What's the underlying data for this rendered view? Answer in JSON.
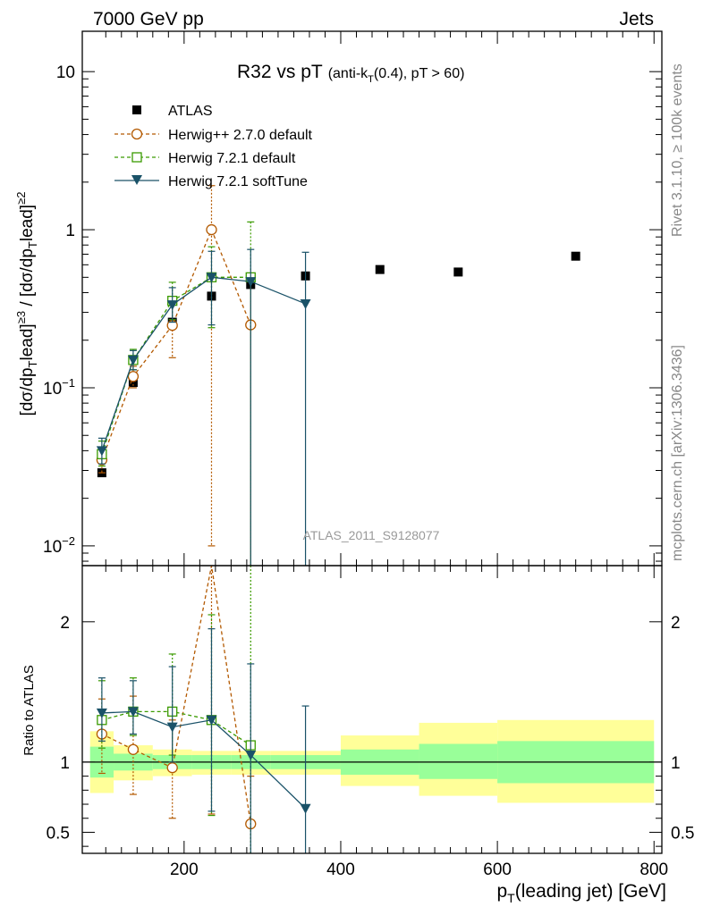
{
  "header": {
    "left": "7000 GeV pp",
    "right": "Jets"
  },
  "side_labels": {
    "rivet": "Rivet 3.1.10, ≥ 100k events",
    "mcplots": "mcplots.cern.ch [arXiv:1306.3436]"
  },
  "analysis_id": "ATLAS_2011_S9128077",
  "colors": {
    "atlas": "#000000",
    "herwigpp": "#b35900",
    "herwig721": "#3a9a00",
    "softtune": "#1a5268",
    "band_outer": "#ffff99",
    "band_inner": "#99ff99"
  },
  "chart_data": [
    {
      "type": "scatter",
      "panel": "main",
      "title": "R32 vs pT",
      "title_suffix": "(anti-k",
      "title_sub": "T",
      "title_rest": "(0.4), pT > 60)",
      "ylabel": "[dσ/dp_T^lead]^{≥3} / [dσ/dp_T^lead]^{≥2}",
      "yscale": "log",
      "ylim": [
        0.0075,
        18
      ],
      "xlim": [
        70,
        810
      ],
      "y_tick_labels": [
        "10−2",
        "10−1",
        "1",
        "10"
      ],
      "series": [
        {
          "name": "ATLAS",
          "marker": "square-filled",
          "x": [
            95,
            135,
            185,
            235,
            285,
            355,
            450,
            550,
            700
          ],
          "values": [
            0.029,
            0.108,
            0.26,
            0.38,
            0.45,
            0.51,
            0.56,
            0.54,
            0.68
          ]
        },
        {
          "name": "Herwig++ 2.7.0 default",
          "marker": "circle-open",
          "line": "dashed",
          "x": [
            95,
            135,
            185,
            235,
            285
          ],
          "values": [
            0.035,
            0.118,
            0.248,
            1.0,
            0.25
          ],
          "err_low": [
            0.029,
            0.1,
            0.155,
            0.01,
            0.0001
          ],
          "err_high": [
            0.041,
            0.137,
            0.335,
            1.9,
            0.5
          ]
        },
        {
          "name": "Herwig 7.2.1 default",
          "marker": "square-open",
          "line": "dashed",
          "x": [
            95,
            135,
            185,
            235,
            285
          ],
          "values": [
            0.038,
            0.15,
            0.355,
            0.5,
            0.5
          ],
          "err_low": [
            0.032,
            0.13,
            0.27,
            0.24,
            0.0001
          ],
          "err_high": [
            0.046,
            0.175,
            0.465,
            0.78,
            1.12
          ]
        },
        {
          "name": "Herwig 7.2.1 softTune",
          "marker": "triangle-down-filled",
          "line": "solid",
          "x": [
            95,
            135,
            185,
            235,
            285,
            355
          ],
          "values": [
            0.04,
            0.15,
            0.335,
            0.5,
            0.47,
            0.34
          ],
          "err_low": [
            0.033,
            0.13,
            0.26,
            0.25,
            0.0001,
            0.0001
          ],
          "err_high": [
            0.048,
            0.172,
            0.43,
            0.73,
            0.75,
            0.72
          ]
        }
      ]
    },
    {
      "type": "line",
      "panel": "ratio",
      "ylabel": "Ratio to ATLAS",
      "xlabel": "p_T(leading jet) [GeV]",
      "xlim": [
        70,
        810
      ],
      "ylim": [
        0.35,
        2.4
      ],
      "y_tick_labels": [
        "0.5",
        "1",
        "2"
      ],
      "x_tick_labels": [
        "200",
        "400",
        "600",
        "800"
      ],
      "bands": {
        "edges": [
          80,
          110,
          160,
          210,
          260,
          310,
          400,
          500,
          600,
          800
        ],
        "outer_low": [
          0.78,
          0.87,
          0.9,
          0.91,
          0.91,
          0.91,
          0.83,
          0.76,
          0.71
        ],
        "outer_high": [
          1.22,
          1.12,
          1.09,
          1.08,
          1.08,
          1.08,
          1.19,
          1.28,
          1.3
        ],
        "inner_low": [
          0.89,
          0.94,
          0.95,
          0.95,
          0.95,
          0.95,
          0.91,
          0.88,
          0.85
        ],
        "inner_high": [
          1.11,
          1.06,
          1.05,
          1.05,
          1.05,
          1.05,
          1.09,
          1.13,
          1.15
        ]
      },
      "series": [
        {
          "name": "Herwig++ 2.7.0 default",
          "x": [
            95,
            135,
            185,
            235,
            285
          ],
          "values": [
            1.2,
            1.09,
            0.96,
            2.7,
            0.56
          ],
          "err_low": [
            0.92,
            0.77,
            0.6,
            0.63,
            0.3
          ],
          "err_high": [
            1.45,
            1.47,
            1.3,
            5.0,
            0.9
          ]
        },
        {
          "name": "Herwig 7.2.1 default",
          "x": [
            95,
            135,
            185,
            235,
            285
          ],
          "values": [
            1.3,
            1.36,
            1.36,
            1.3,
            1.12
          ],
          "err_low": [
            1.1,
            1.19,
            1.05,
            0.62,
            0.3
          ],
          "err_high": [
            1.58,
            1.6,
            1.77,
            2.05,
            2.6
          ]
        },
        {
          "name": "Herwig 7.2.1 softTune",
          "x": [
            95,
            135,
            185,
            235,
            285,
            355
          ],
          "values": [
            1.35,
            1.36,
            1.25,
            1.3,
            1.05,
            0.67
          ],
          "err_low": [
            1.15,
            1.2,
            1.0,
            0.65,
            0.3,
            0.3
          ],
          "err_high": [
            1.6,
            1.58,
            1.68,
            1.95,
            1.7,
            1.4
          ]
        }
      ]
    }
  ]
}
